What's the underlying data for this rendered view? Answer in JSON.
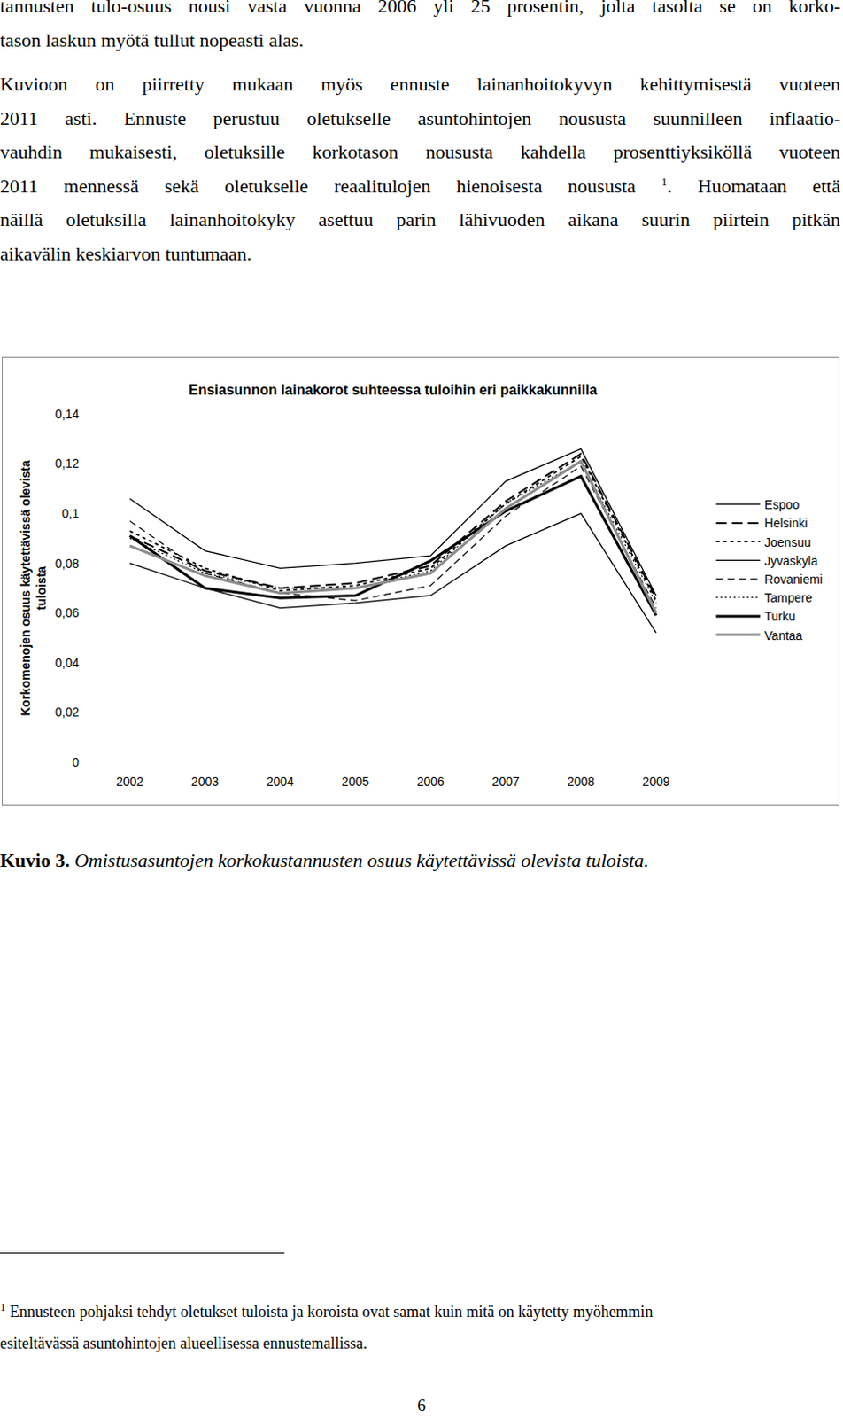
{
  "body": {
    "paragraphs": [
      [
        [
          {
            "text": "tannusten tulo-osuus nousi vasta vuonna 2006 yli 25 prosentin, jolta tasolta se on korko-"
          }
        ],
        [
          {
            "text": "tason laskun myötä tullut nopeasti alas."
          }
        ]
      ],
      [
        [
          {
            "text": "Kuvioon on piirretty mukaan myös ennuste lainanhoitokyvyn kehittymisestä vuoteen"
          }
        ],
        [
          {
            "text": "2011 asti. Ennuste perustuu oletukselle asuntohintojen noususta suunnilleen inflaatio-"
          }
        ],
        [
          {
            "text": "vauhdin mukaisesti, oletuksille korkotason noususta kahdella prosenttiyksiköllä vuoteen"
          }
        ],
        [
          {
            "text": "2011 mennessä sekä oletukselle reaalitulojen hienoisesta noususta "
          },
          {
            "text": "1",
            "sup": true
          },
          {
            "text": ". Huomataan että"
          }
        ],
        [
          {
            "text": "näillä oletuksilla lainanhoitokyky asettuu parin lähivuoden aikana suurin piirtein pitkän"
          }
        ],
        [
          {
            "text": "aikavälin keskiarvon tuntumaan."
          }
        ]
      ]
    ]
  },
  "chart_data": {
    "type": "line",
    "title": "Ensiasunnon lainakorot suhteessa tuloihin eri paikkakunnilla",
    "ylabel": [
      "Korkomenojen osuus käytettävissä olevista",
      "tuloista"
    ],
    "categories": [
      "2002",
      "2003",
      "2004",
      "2005",
      "2006",
      "2007",
      "2008",
      "2009"
    ],
    "series": [
      {
        "name": "Espoo",
        "color": "#000000",
        "line_style": "solid",
        "values": [
          0.08,
          0.07,
          0.062,
          0.064,
          0.067,
          0.087,
          0.1,
          0.052
        ]
      },
      {
        "name": "Helsinki",
        "color": "#000000",
        "line_style": "longdash",
        "values": [
          0.091,
          0.077,
          0.07,
          0.072,
          0.079,
          0.105,
          0.124,
          0.066
        ]
      },
      {
        "name": "Joensuu",
        "color": "#000000",
        "line_style": "shortdash",
        "values": [
          0.093,
          0.078,
          0.069,
          0.071,
          0.078,
          0.104,
          0.123,
          0.065
        ]
      },
      {
        "name": "Jyväskylä",
        "color": "#000000",
        "line_style": "solid",
        "values": [
          0.106,
          0.085,
          0.078,
          0.08,
          0.083,
          0.113,
          0.126,
          0.067
        ]
      },
      {
        "name": "Rovaniemi",
        "color": "#000000",
        "line_style": "dash",
        "values": [
          0.097,
          0.076,
          0.068,
          0.065,
          0.071,
          0.099,
          0.119,
          0.062
        ]
      },
      {
        "name": "Tampere",
        "color": "#000000",
        "line_style": "dot",
        "values": [
          0.09,
          0.076,
          0.07,
          0.07,
          0.077,
          0.104,
          0.121,
          0.064
        ]
      },
      {
        "name": "Turku",
        "color": "#000000",
        "line_style": "bold",
        "values": [
          0.091,
          0.07,
          0.066,
          0.067,
          0.081,
          0.101,
          0.115,
          0.059
        ]
      },
      {
        "name": "Vantaa",
        "color": "#8c8c8c",
        "line_style": "bold",
        "values": [
          0.087,
          0.075,
          0.068,
          0.07,
          0.076,
          0.102,
          0.121,
          0.06
        ]
      }
    ],
    "ylim": [
      0,
      0.14
    ],
    "yticks": [
      0,
      {
        "value": 0.02,
        "label": "0,02"
      },
      {
        "value": 0.04,
        "label": "0,04"
      },
      {
        "value": 0.06,
        "label": "0,06"
      },
      {
        "value": 0.08,
        "label": "0,08"
      },
      {
        "value": 0.1,
        "label": "0,1"
      },
      {
        "value": 0.12,
        "label": "0,12"
      },
      {
        "value": 0.14,
        "label": "0,14"
      }
    ],
    "grid": false,
    "legend": "right"
  },
  "caption": {
    "label": "Kuvio 3.",
    "text": "Omistusasuntojen korkokustannusten osuus käytettävissä olevista tuloista."
  },
  "footnote": {
    "mark": "1",
    "lines": [
      "Ennusteen pohjaksi tehdyt oletukset tuloista ja koroista ovat samat kuin mitä on käytetty myöhemmin",
      "esiteltävässä asuntohintojen alueellisessa ennustemallissa."
    ]
  },
  "page_number": 6
}
